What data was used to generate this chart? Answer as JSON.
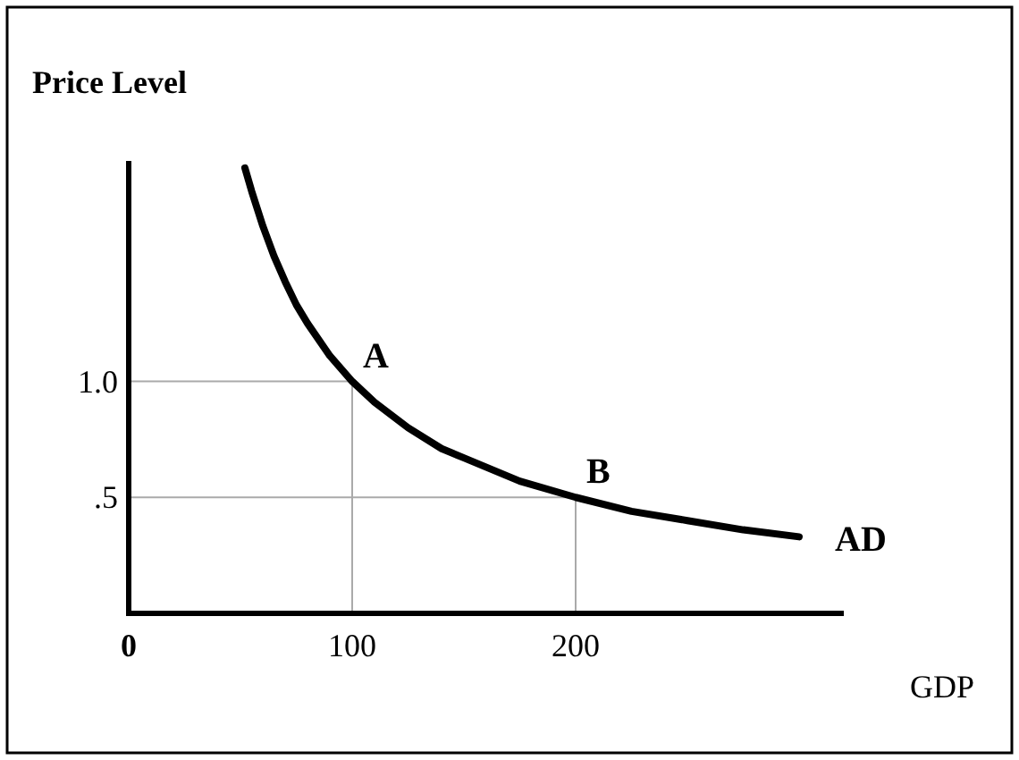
{
  "chart_data": {
    "type": "line",
    "xlabel": "GDP",
    "ylabel": "Price Level",
    "x": [
      52,
      55,
      60,
      65,
      70,
      75,
      80,
      90,
      100,
      110,
      125,
      140,
      150,
      175,
      200,
      225,
      250,
      275,
      300
    ],
    "series": [
      {
        "name": "AD",
        "color": "#000000",
        "values": [
          1.92,
          1.82,
          1.67,
          1.54,
          1.43,
          1.33,
          1.25,
          1.11,
          1.0,
          0.91,
          0.8,
          0.71,
          0.67,
          0.57,
          0.5,
          0.44,
          0.4,
          0.36,
          0.33
        ]
      }
    ],
    "xlim": [
      0,
      320
    ],
    "ylim": [
      0,
      1.95
    ],
    "xticks": [
      0,
      100,
      200
    ],
    "yticks": [
      {
        "value": 0.5,
        "label": ".5"
      },
      {
        "value": 1,
        "label": "1.0"
      }
    ],
    "annotations": [
      {
        "text": "A",
        "x": 100,
        "y": 1
      },
      {
        "text": "B",
        "x": 200,
        "y": 0.5
      }
    ],
    "marker": "none",
    "line_style": "solid",
    "grid": false
  }
}
